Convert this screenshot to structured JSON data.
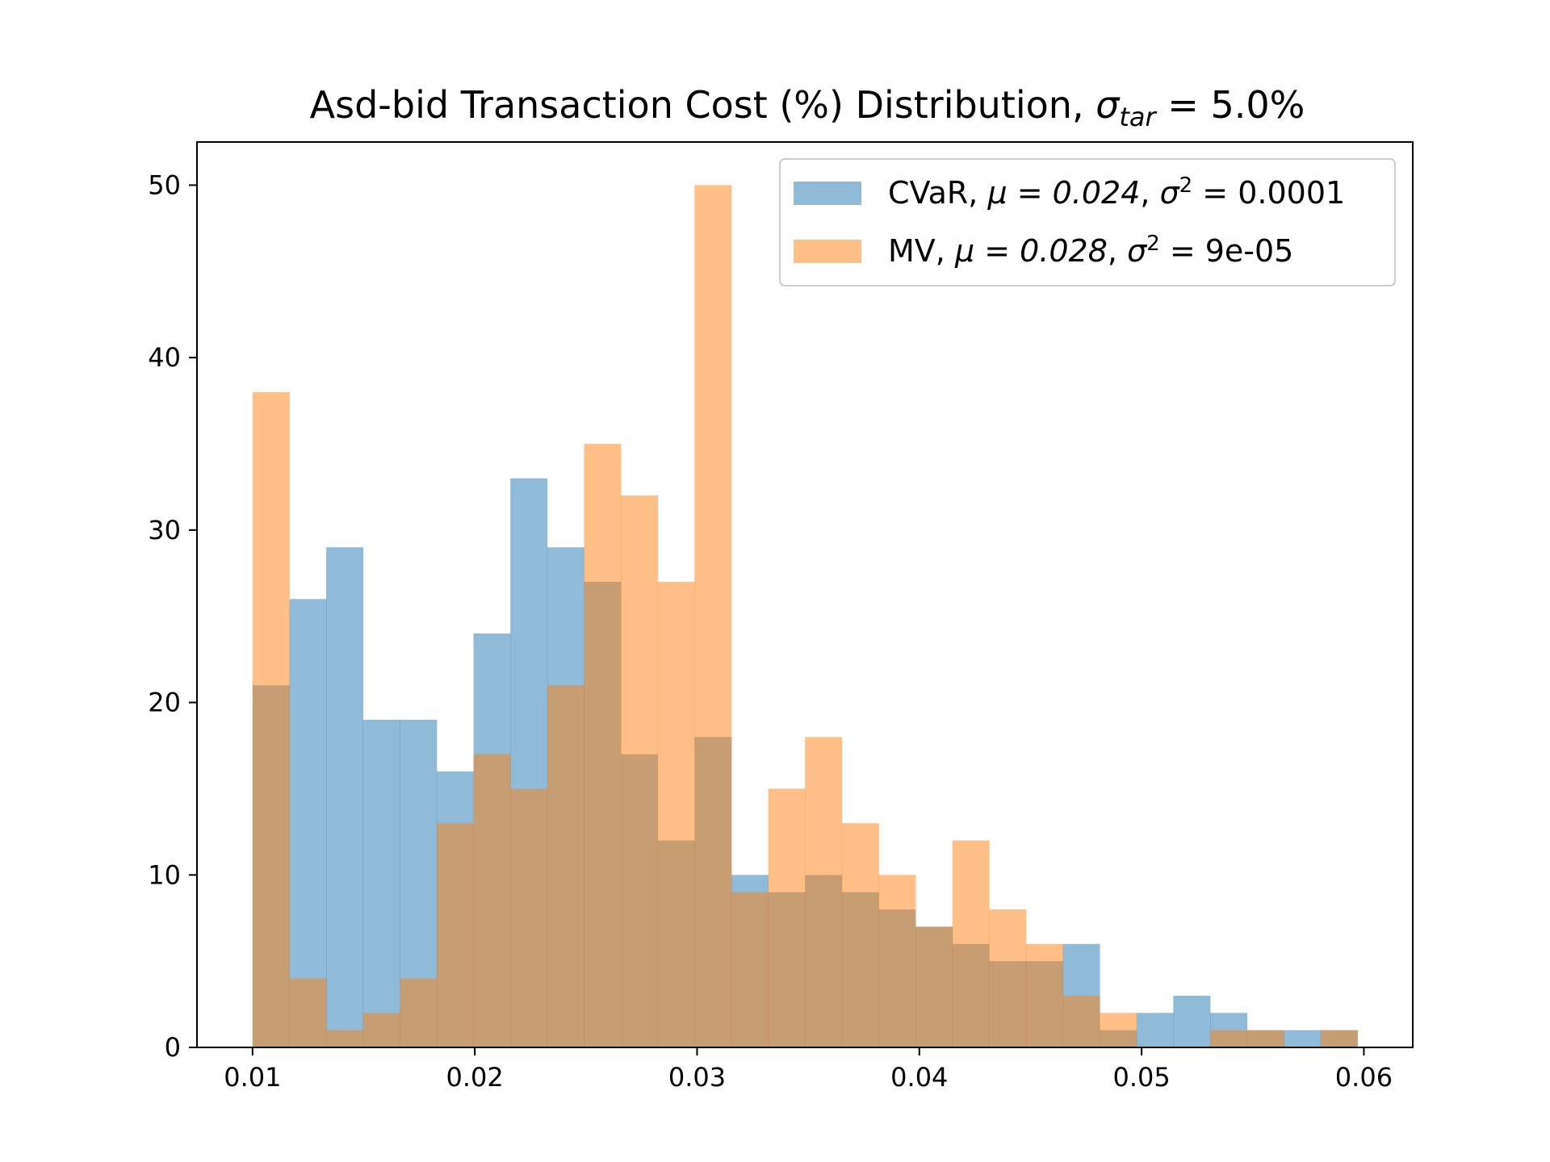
{
  "chart_data": {
    "type": "bar",
    "subtype": "overlapping-histogram",
    "title": {
      "prefix": "Asd-bid Transaction Cost (%) Distribution, ",
      "symbol": "σ",
      "subscript": "tar",
      "suffix": " = 5.0%"
    },
    "xlabel": "",
    "ylabel": "",
    "xlim": [
      0.0075,
      0.0622
    ],
    "ylim": [
      0,
      52.5
    ],
    "xticks": [
      0.01,
      0.02,
      0.03,
      0.04,
      0.05,
      0.06
    ],
    "xtick_labels": [
      "0.01",
      "0.02",
      "0.03",
      "0.04",
      "0.05",
      "0.06"
    ],
    "yticks": [
      0,
      10,
      20,
      30,
      40,
      50
    ],
    "ytick_labels": [
      "0",
      "10",
      "20",
      "30",
      "40",
      "50"
    ],
    "grid": false,
    "legend_position": "top-right",
    "series": [
      {
        "name": "CVaR",
        "legend": {
          "label": "CVaR, ",
          "mu": "μ = 0.024",
          "sep": ", ",
          "sigma": "σ",
          "sup": "2",
          "rest": " = 0.0001"
        },
        "color": "#1f77b4",
        "alpha": 0.5,
        "bin_start": 0.01,
        "bin_width": 0.0016571,
        "counts": [
          21,
          26,
          29,
          19,
          19,
          16,
          24,
          33,
          29,
          27,
          17,
          12,
          18,
          10,
          9,
          10,
          9,
          8,
          7,
          6,
          5,
          5,
          6,
          1,
          2,
          3,
          2,
          1,
          1,
          1
        ]
      },
      {
        "name": "MV",
        "legend": {
          "label": "MV, ",
          "mu": "μ = 0.028",
          "sep": ", ",
          "sigma": "σ",
          "sup": "2",
          "rest": " = 9e-05"
        },
        "color": "#ff7f0e",
        "alpha": 0.5,
        "bin_start": 0.01,
        "bin_width": 0.0016571,
        "counts": [
          38,
          4,
          1,
          2,
          4,
          13,
          17,
          15,
          21,
          35,
          32,
          27,
          50,
          9,
          15,
          18,
          13,
          10,
          7,
          12,
          8,
          6,
          3,
          2,
          0,
          0,
          1,
          1,
          0,
          1
        ]
      }
    ]
  }
}
